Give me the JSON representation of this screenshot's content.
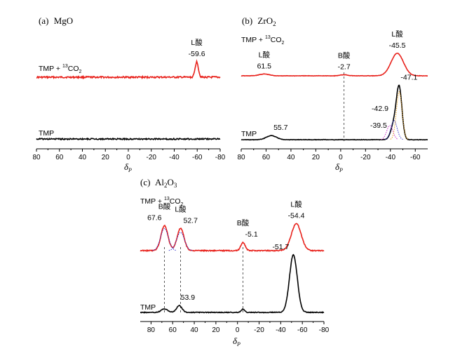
{
  "chart_data": [
    {
      "type": "line",
      "panel": "a",
      "title_prefix": "(a)",
      "title_main": "MgO",
      "xlabel_main": "δ",
      "xlabel_sub": "P",
      "xlim": [
        80,
        -80
      ],
      "xticks": [
        80,
        60,
        40,
        20,
        0,
        -20,
        -40,
        -60,
        -80
      ],
      "series": [
        {
          "name_main": "TMP + ",
          "name_sup": "13",
          "name_end": "CO",
          "name_sub": "2",
          "color": "#e8211b",
          "baseline_ppm": [
            [
              80,
              0
            ],
            [
              -80,
              0
            ]
          ],
          "peaks": [
            {
              "center": -59.6,
              "height": 1.0,
              "width": 1.4
            }
          ]
        },
        {
          "name": "TMP",
          "color": "#000000",
          "peaks": []
        }
      ],
      "annotations": [
        {
          "text": "L酸",
          "x": -59.6,
          "series": 0,
          "row": 1
        },
        {
          "text": "-59.6",
          "x": -59.6,
          "series": 0,
          "row": 0
        }
      ]
    },
    {
      "type": "line",
      "panel": "b",
      "title_prefix": "(b)",
      "title_main": "ZrO",
      "title_sub": "2",
      "xlabel_main": "δ",
      "xlabel_sub": "P",
      "xlim": [
        80,
        -70
      ],
      "xticks": [
        80,
        60,
        40,
        20,
        0,
        -20,
        -40,
        -60
      ],
      "series": [
        {
          "name_main": "TMP + ",
          "name_sup": "13",
          "name_end": "CO",
          "name_sub": "2",
          "color": "#e8211b",
          "peaks": [
            {
              "center": 61.5,
              "height": 0.08,
              "width": 4
            },
            {
              "center": -2.7,
              "height": 0.05,
              "width": 3
            },
            {
              "center": -45.5,
              "height": 1.0,
              "width": 5
            }
          ]
        },
        {
          "name": "TMP",
          "color": "#000000",
          "peaks": [
            {
              "center": 55.7,
              "height": 0.08,
              "width": 4
            },
            {
              "center": -42.9,
              "height": 0.3,
              "width": 2.5
            },
            {
              "center": -47.1,
              "height": 1.0,
              "width": 2.2
            }
          ],
          "deconvolution": [
            {
              "center": -39.5,
              "height": 0.28,
              "width": 2.5,
              "color": "#cc33cc"
            },
            {
              "center": -42.9,
              "height": 0.38,
              "width": 2.5,
              "color": "#3333cc"
            },
            {
              "center": -47.1,
              "height": 0.95,
              "width": 2.3,
              "color": "#e6a020"
            }
          ]
        }
      ],
      "annotations": [
        {
          "text": "L酸",
          "x": 61.5,
          "series": 0,
          "row": 1
        },
        {
          "text": "61.5",
          "x": 61.5,
          "series": 0,
          "row": 0
        },
        {
          "text": "B酸",
          "x": -2.7,
          "series": 0,
          "row": 1
        },
        {
          "text": "-2.7",
          "x": -2.7,
          "series": 0,
          "row": 0
        },
        {
          "text": "L酸",
          "x": -45.5,
          "series": 0,
          "row": 1
        },
        {
          "text": "-45.5",
          "x": -45.5,
          "series": 0,
          "row": 0
        },
        {
          "text": "55.7",
          "x": 55.7,
          "series": 1,
          "row": 0
        },
        {
          "text": "-42.9",
          "x": -42.9,
          "series": 1,
          "row": 0
        },
        {
          "text": "-39.5",
          "x": -39.5,
          "series": 1,
          "row": 0
        },
        {
          "text": "-47.1",
          "x": -47.1,
          "series": 1,
          "row": 0
        }
      ],
      "guides": [
        -2.7
      ]
    },
    {
      "type": "line",
      "panel": "c",
      "title_prefix": "(c)",
      "title_main": "Al",
      "title_sub1": "2",
      "title_mid": "O",
      "title_sub2": "3",
      "xlabel_main": "δ",
      "xlabel_sub": "P",
      "xlim": [
        90,
        -80
      ],
      "xticks": [
        80,
        60,
        40,
        20,
        0,
        -20,
        -40,
        -60,
        -80
      ],
      "series": [
        {
          "name_main": "TMP + ",
          "name_sup": "13",
          "name_end": "CO",
          "name_sub": "2",
          "color": "#e8211b",
          "peaks": [
            {
              "center": 67.6,
              "height": 0.85,
              "width": 3.2
            },
            {
              "center": 52.7,
              "height": 0.75,
              "width": 3.2
            },
            {
              "center": -5.1,
              "height": 0.28,
              "width": 2
            },
            {
              "center": -54.4,
              "height": 0.92,
              "width": 4.5
            }
          ],
          "deconvolution": [
            {
              "center": 67.6,
              "height": 0.75,
              "width": 3.6,
              "color": "#3333cc"
            },
            {
              "center": 52.7,
              "height": 0.62,
              "width": 3.6,
              "color": "#3333cc"
            }
          ]
        },
        {
          "name": "TMP",
          "color": "#000000",
          "peaks": [
            {
              "center": 67.6,
              "height": 0.06,
              "width": 3
            },
            {
              "center": 53.9,
              "height": 0.12,
              "width": 2.5
            },
            {
              "center": -5.1,
              "height": 0.06,
              "width": 1.5
            },
            {
              "center": -51.7,
              "height": 1.0,
              "width": 3.6
            }
          ]
        }
      ],
      "annotations": [
        {
          "text": "B酸",
          "x": 67.6,
          "series": 0,
          "row": 1
        },
        {
          "text": "67.6",
          "x": 67.6,
          "series": 0,
          "row": 0
        },
        {
          "text": "L酸",
          "x": 52.7,
          "series": 0,
          "row": 1
        },
        {
          "text": "52.7",
          "x": 52.7,
          "series": 0,
          "row": 0
        },
        {
          "text": "B酸",
          "x": -5.1,
          "series": 0,
          "row": 1
        },
        {
          "text": "-5.1",
          "x": -5.1,
          "series": 0,
          "row": 0
        },
        {
          "text": "L酸",
          "x": -54.4,
          "series": 0,
          "row": 1
        },
        {
          "text": "-54.4",
          "x": -54.4,
          "series": 0,
          "row": 0
        },
        {
          "text": "-51.7",
          "x": -51.7,
          "series": 1,
          "row": 0
        },
        {
          "text": "53.9",
          "x": 53.9,
          "series": 1,
          "row": 0
        }
      ],
      "guides": [
        67.6,
        52.7,
        -5.1
      ]
    }
  ]
}
